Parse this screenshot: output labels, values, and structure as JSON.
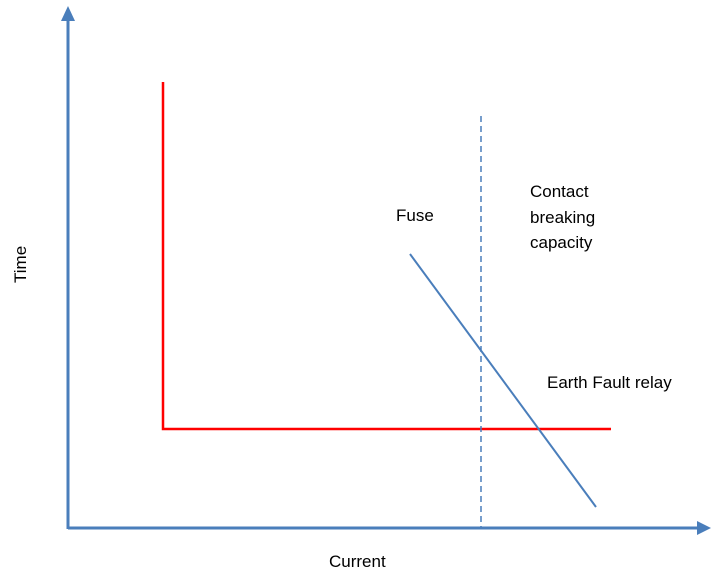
{
  "axes": {
    "x_label": "Current",
    "y_label": "Time",
    "axis_color": "#4a7ebb"
  },
  "curves": {
    "earth_fault_relay": {
      "label": "Earth Fault relay",
      "color": "#ff0000"
    },
    "fuse": {
      "label": "Fuse",
      "color": "#4a7ebb"
    },
    "contact_breaking_capacity": {
      "label_lines": [
        "Contact",
        "breaking",
        "capacity"
      ],
      "color": "#4a7ebb",
      "style": "dashed"
    }
  }
}
